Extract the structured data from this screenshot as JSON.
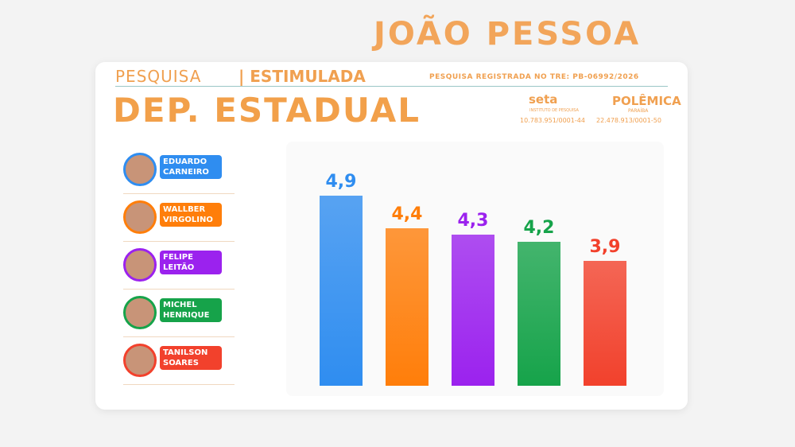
{
  "header": {
    "city": "JOÃO PESSOA",
    "survey": "PESQUISA",
    "survey_type": "| ESTIMULADA",
    "registration": "PESQUISA REGISTRADA NO TRE: PB-06992/2026",
    "logo1": "seta",
    "logo1_sub": "INSTITUTO DE PESQUISA",
    "cnpj1": "10.783.951/0001-44",
    "logo2": "POLÊMICA",
    "logo2_sub": "PARAÍBA",
    "cnpj2": "22.478.913/0001-50"
  },
  "chart_data": {
    "type": "bar",
    "title": "DEP. ESTADUAL",
    "categories": [
      "EDUARDO CARNEIRO",
      "WALLBER VIRGOLINO",
      "FELIPE LEITÃO",
      "MICHEL HENRIQUE",
      "TANILSON SOARES"
    ],
    "values": [
      4.9,
      4.4,
      4.3,
      4.2,
      3.9
    ],
    "value_labels": [
      "4,9",
      "4,4",
      "4,3",
      "4,2",
      "3,9"
    ],
    "colors": [
      "#2f8df0",
      "#ff7e0a",
      "#9b22ee",
      "#16a34a",
      "#f2412c"
    ],
    "ylim": [
      2,
      5.2
    ]
  }
}
